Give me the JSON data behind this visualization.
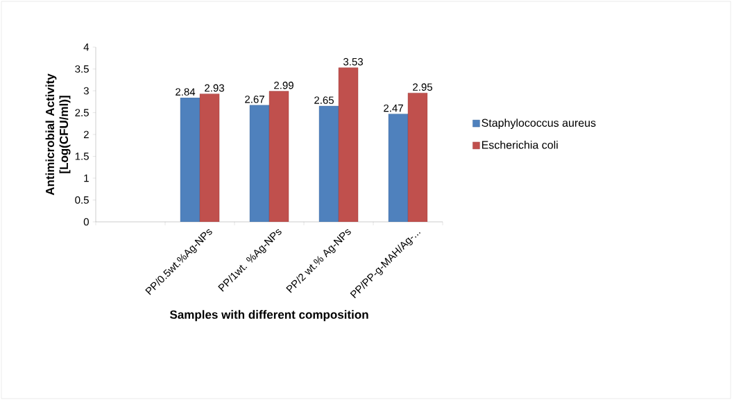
{
  "chart_data": {
    "type": "bar",
    "xlabel": "Samples with different composition",
    "ylabel": "Antimicrobial Activity [Log(CFU/ml)]",
    "categories": [
      null,
      "PP/0.5wt.%Ag-NPs",
      "PP/1wt. %Ag-NPs",
      "PP/2 wt.% Ag-NPs",
      "PP/PP-g-MAH/Ag-..."
    ],
    "series": [
      {
        "name": "Staphylococcus aureus",
        "color": "#4f81bd",
        "values": [
          null,
          2.84,
          2.67,
          2.65,
          2.47
        ]
      },
      {
        "name": "Escherichia coli",
        "color": "#c0504d",
        "values": [
          null,
          2.93,
          2.99,
          3.53,
          2.95
        ]
      }
    ],
    "ylim": [
      0,
      4
    ],
    "yticks": [
      0,
      0.5,
      1,
      1.5,
      2,
      2.5,
      3,
      3.5,
      4
    ],
    "data_labels": true,
    "legend": "right",
    "grid": false
  }
}
